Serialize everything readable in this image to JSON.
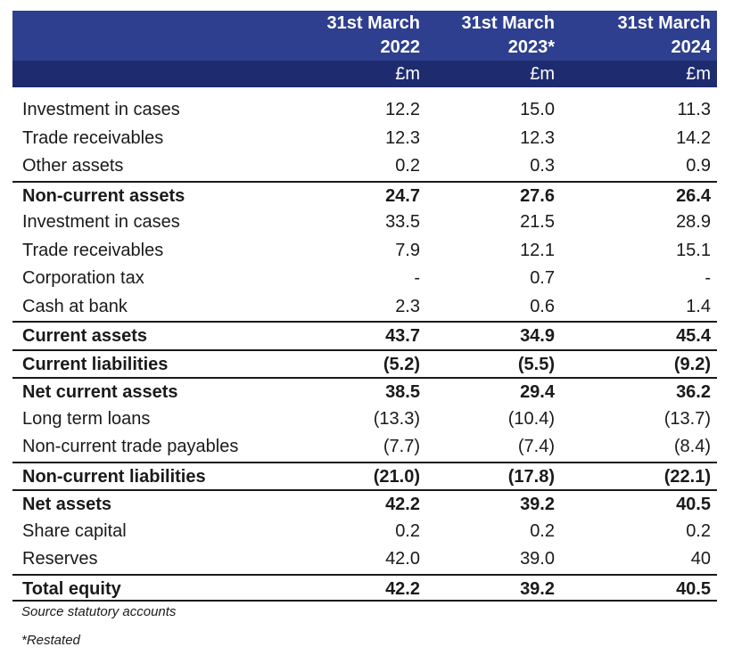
{
  "columns": [
    {
      "line1": "31st March",
      "line2": "2022",
      "unit": "£m"
    },
    {
      "line1": "31st March",
      "line2": "2023*",
      "unit": "£m"
    },
    {
      "line1": "31st March",
      "line2": "2024",
      "unit": "£m"
    }
  ],
  "rows": [
    {
      "label": "Investment in cases",
      "v": [
        "12.2",
        "15.0",
        "11.3"
      ]
    },
    {
      "label": "Trade receivables",
      "v": [
        "12.3",
        "12.3",
        "14.2"
      ]
    },
    {
      "label": "Other assets",
      "v": [
        "0.2",
        "0.3",
        "0.9"
      ]
    },
    {
      "label": "Non-current assets",
      "v": [
        "24.7",
        "27.6",
        "26.4"
      ]
    },
    {
      "label": "Investment in cases",
      "v": [
        "33.5",
        "21.5",
        "28.9"
      ]
    },
    {
      "label": "Trade receivables",
      "v": [
        "7.9",
        "12.1",
        "15.1"
      ]
    },
    {
      "label": "Corporation tax",
      "v": [
        "-",
        "0.7",
        "-"
      ]
    },
    {
      "label": "Cash at bank",
      "v": [
        "2.3",
        "0.6",
        "1.4"
      ]
    },
    {
      "label": "Current assets",
      "v": [
        "43.7",
        "34.9",
        "45.4"
      ]
    },
    {
      "label": "Current liabilities",
      "v": [
        "(5.2)",
        "(5.5)",
        "(9.2)"
      ]
    },
    {
      "label": "Net current assets",
      "v": [
        "38.5",
        "29.4",
        "36.2"
      ]
    },
    {
      "label": "Long term loans",
      "v": [
        "(13.3)",
        "(10.4)",
        "(13.7)"
      ]
    },
    {
      "label": "Non-current trade payables",
      "v": [
        "(7.7)",
        "(7.4)",
        "(8.4)"
      ]
    },
    {
      "label": "Non-current liabilities",
      "v": [
        "(21.0)",
        "(17.8)",
        "(22.1)"
      ]
    },
    {
      "label": "Net assets",
      "v": [
        "42.2",
        "39.2",
        "40.5"
      ]
    },
    {
      "label": "Share capital",
      "v": [
        "0.2",
        "0.2",
        "0.2"
      ]
    },
    {
      "label": "Reserves",
      "v": [
        "42.0",
        "39.0",
        "40"
      ]
    },
    {
      "label": "Total equity",
      "v": [
        "42.2",
        "39.2",
        "40.5"
      ]
    }
  ],
  "footnotes": {
    "source": "Source statutory accounts",
    "restated": "*Restated"
  }
}
